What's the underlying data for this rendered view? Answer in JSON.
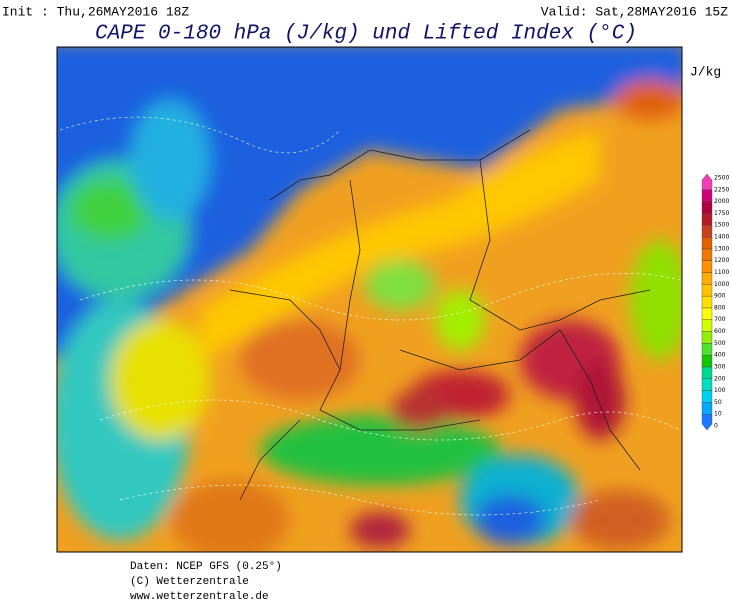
{
  "header": {
    "init": "Init : Thu,26MAY2016 18Z",
    "valid": "Valid: Sat,28MAY2016 15Z",
    "title": "CAPE 0-180 hPa (J/kg) und Lifted Index (°C)"
  },
  "colorbar": {
    "unit": "J/kg",
    "levels": [
      0,
      10,
      50,
      100,
      200,
      300,
      400,
      500,
      600,
      700,
      800,
      900,
      1000,
      1100,
      1200,
      1300,
      1400,
      1500,
      1750,
      2000,
      2250,
      2500
    ],
    "colors": [
      "#1e78ff",
      "#00a8ff",
      "#00d0f0",
      "#00e0c0",
      "#00d890",
      "#10c800",
      "#50e030",
      "#90f000",
      "#d0ff00",
      "#ffff00",
      "#ffe000",
      "#ffc400",
      "#ffaa00",
      "#ff9000",
      "#f07800",
      "#e06000",
      "#c84020",
      "#b01c28",
      "#b00040",
      "#d0007a",
      "#f040b8"
    ]
  },
  "footer": {
    "source": "Daten: NCEP GFS (0.25°)",
    "copyright": "(C) Wetterzentrale",
    "url": "www.wetterzentrale.de"
  }
}
